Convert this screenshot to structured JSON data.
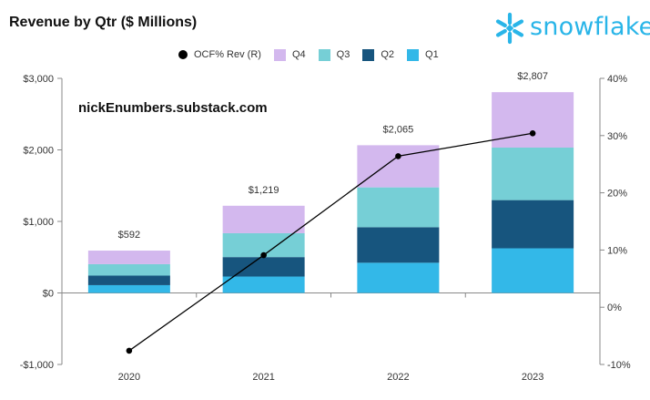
{
  "title": "Revenue by Qtr ($ Millions)",
  "logo_text": "snowflake",
  "watermark": "nickEnumbers.substack.com",
  "colors": {
    "Q1": "#33B8E8",
    "Q2": "#17557E",
    "Q3": "#76CFD6",
    "Q4": "#D3B8EE",
    "line": "#000000",
    "brand": "#29B5E8"
  },
  "legend": [
    {
      "key": "OCF",
      "label": "OCF% Rev (R)",
      "kind": "dot"
    },
    {
      "key": "Q4",
      "label": "Q4",
      "kind": "box"
    },
    {
      "key": "Q3",
      "label": "Q3",
      "kind": "box"
    },
    {
      "key": "Q2",
      "label": "Q2",
      "kind": "box"
    },
    {
      "key": "Q1",
      "label": "Q1",
      "kind": "box"
    }
  ],
  "chart_data": {
    "type": "bar",
    "stacked": true,
    "categories": [
      "2020",
      "2021",
      "2022",
      "2023"
    ],
    "series": [
      {
        "name": "Q1",
        "values": [
          109,
          229,
          422,
          624
        ]
      },
      {
        "name": "Q2",
        "values": [
          133,
          272,
          497,
          674
        ]
      },
      {
        "name": "Q3",
        "values": [
          160,
          334,
          557,
          734
        ]
      },
      {
        "name": "Q4",
        "values": [
          190,
          384,
          589,
          775
        ]
      }
    ],
    "totals": [
      "$592",
      "$1,219",
      "$2,065",
      "$2,807"
    ],
    "line_series": {
      "name": "OCF% Rev (R)",
      "values": [
        -7.6,
        9.1,
        26.4,
        30.4
      ],
      "axis": "right"
    },
    "ylim": [
      -1000,
      3000
    ],
    "y_ticks": [
      -1000,
      0,
      1000,
      2000,
      3000
    ],
    "y_tick_labels": [
      "-$1,000",
      "$0",
      "$1,000",
      "$2,000",
      "$3,000"
    ],
    "y2lim": [
      -10,
      40
    ],
    "y2_ticks": [
      -10,
      0,
      10,
      20,
      30,
      40
    ],
    "y2_tick_labels": [
      "-10%",
      "0%",
      "10%",
      "20%",
      "30%",
      "40%"
    ],
    "grid": false,
    "legend_position": "top"
  }
}
